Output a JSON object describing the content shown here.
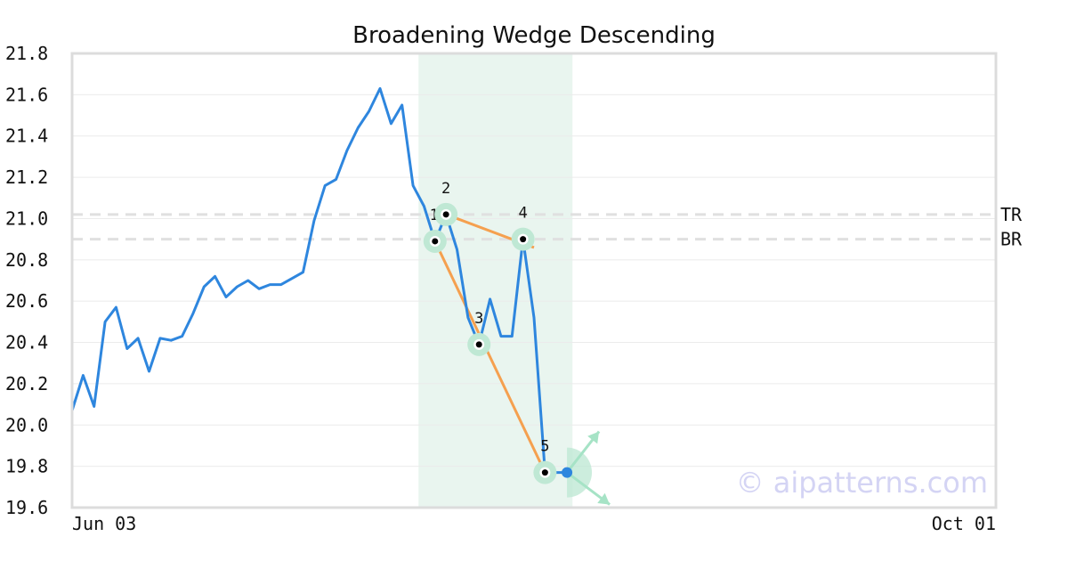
{
  "chart_data": {
    "type": "line",
    "title": "Broadening Wedge Descending",
    "xlabel": "",
    "ylabel": "",
    "ylim": [
      19.6,
      21.8
    ],
    "y_ticks": [
      "21.8",
      "21.6",
      "21.4",
      "21.2",
      "21.0",
      "20.8",
      "20.6",
      "20.4",
      "20.2",
      "20.0",
      "19.8",
      "19.6"
    ],
    "x_tick_labels": [
      "Jun 03",
      "Oct 01"
    ],
    "x_tick_index": [
      0,
      84
    ],
    "x_count": 85,
    "series": [
      {
        "name": "",
        "color": "#2e86de",
        "values": [
          20.07,
          20.24,
          20.09,
          20.5,
          20.57,
          20.37,
          20.42,
          20.26,
          20.42,
          20.41,
          20.43,
          20.54,
          20.67,
          20.72,
          20.62,
          20.67,
          20.7,
          20.66,
          20.68,
          20.68,
          20.71,
          20.74,
          20.99,
          21.16,
          21.19,
          21.33,
          21.44,
          21.52,
          21.63,
          21.46,
          21.55,
          21.16,
          21.06,
          20.89,
          21.02,
          20.85,
          20.52,
          20.39,
          20.61,
          20.43,
          20.43,
          20.9,
          20.52,
          19.77
        ]
      }
    ],
    "projection": {
      "from_index": 43,
      "to_index": 45,
      "value": 19.77
    },
    "pattern_points": [
      {
        "label": "1",
        "index": 33,
        "value": 20.89
      },
      {
        "label": "2",
        "index": 34,
        "value": 21.02
      },
      {
        "label": "3",
        "index": 37,
        "value": 20.39
      },
      {
        "label": "4",
        "index": 41,
        "value": 20.9
      },
      {
        "label": "5",
        "index": 43,
        "value": 19.77
      }
    ],
    "trendlines": [
      {
        "from": [
          34,
          21.02
        ],
        "to": [
          42,
          20.86
        ]
      },
      {
        "from": [
          33,
          20.89
        ],
        "to": [
          43,
          19.77
        ]
      }
    ],
    "levels": [
      {
        "label": "TR",
        "value": 21.02
      },
      {
        "label": "BR",
        "value": 20.9
      }
    ],
    "highlight_range": [
      31.5,
      45.5
    ],
    "grid": true,
    "watermark": "© aipatterns.com",
    "colors": {
      "line": "#2e86de",
      "trendline": "#f5a04f",
      "highlight": "#e9f5ef",
      "marker_ring": "#bfe8d4",
      "arrow": "#a6e3c6",
      "level_line": "#e0e0e0"
    }
  }
}
